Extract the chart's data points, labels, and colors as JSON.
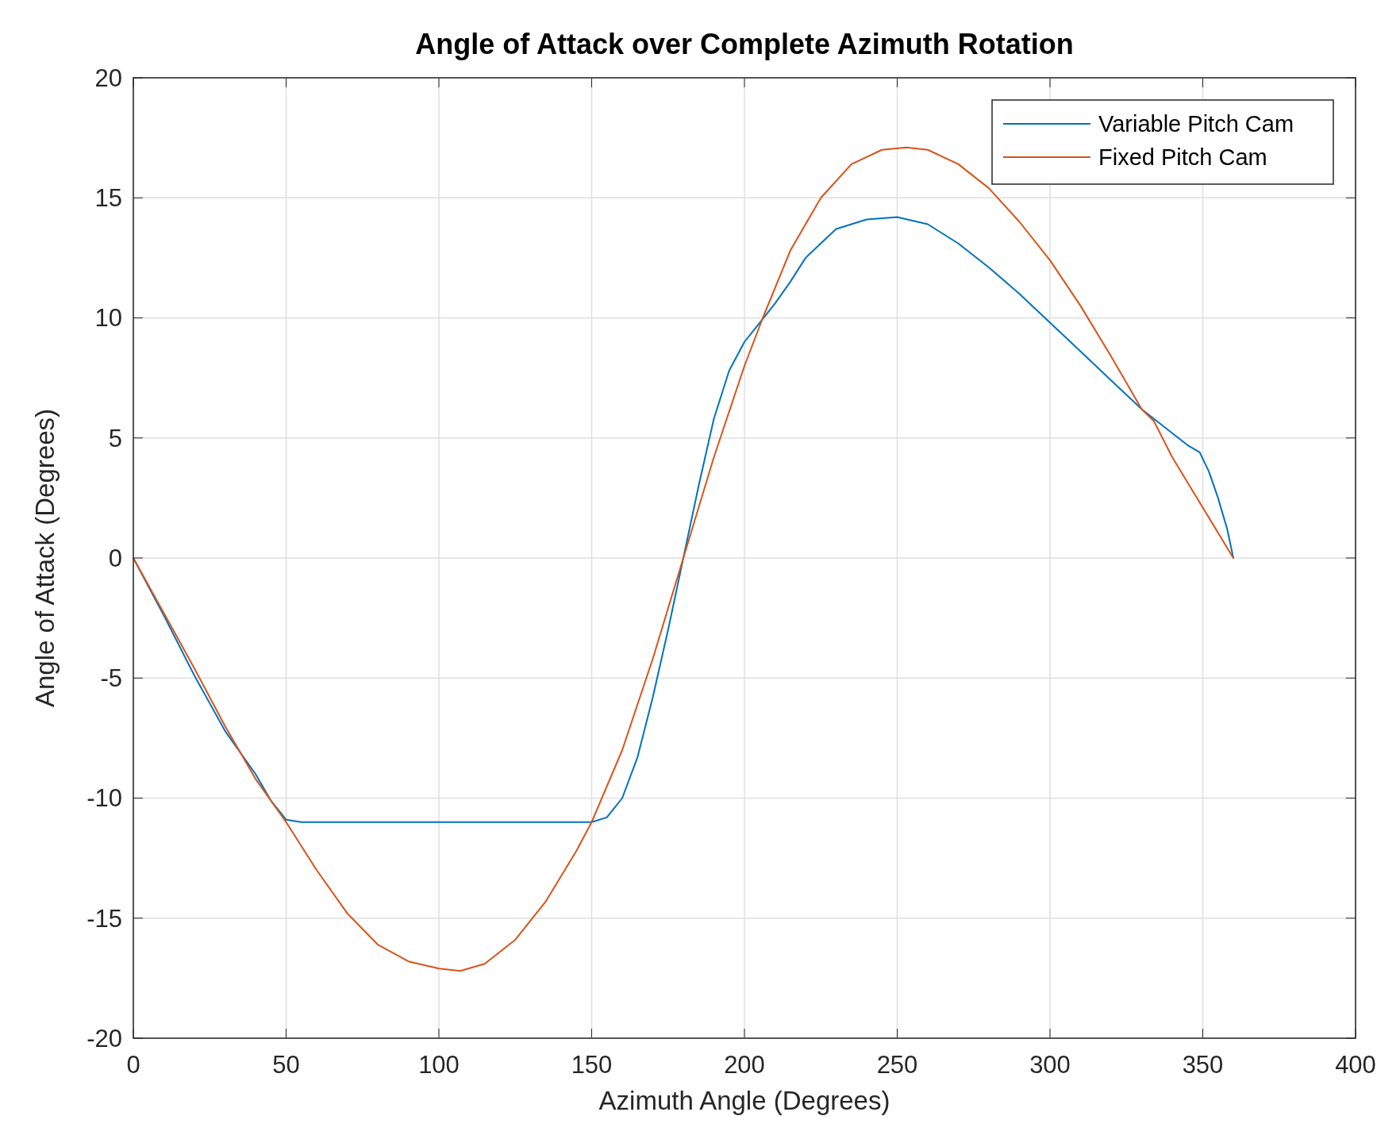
{
  "chart_data": {
    "type": "line",
    "title": "Angle of Attack over Complete Azimuth Rotation",
    "xlabel": "Azimuth Angle (Degrees)",
    "ylabel": "Angle of Attack (Degrees)",
    "xlim": [
      0,
      400
    ],
    "xticks": [
      0,
      50,
      100,
      150,
      200,
      250,
      300,
      350,
      400
    ],
    "ylim": [
      -20,
      20
    ],
    "yticks": [
      -20,
      -15,
      -10,
      -5,
      0,
      5,
      10,
      15,
      20
    ],
    "grid": true,
    "legend": "top right",
    "series": [
      {
        "name": "Variable Pitch Cam",
        "color": "#0072bd",
        "x": [
          0,
          10,
          20,
          30,
          40,
          45,
          50,
          55,
          100,
          145,
          150,
          155,
          160,
          165,
          170,
          175,
          180,
          185,
          190,
          195,
          200,
          205,
          210,
          215,
          220,
          230,
          240,
          250,
          260,
          270,
          280,
          290,
          300,
          310,
          320,
          330,
          340,
          345,
          349,
          352,
          355,
          358,
          360
        ],
        "values": [
          0,
          -2.4,
          -4.9,
          -7.2,
          -9.0,
          -10.1,
          -10.9,
          -11,
          -11,
          -11,
          -11,
          -10.8,
          -10.0,
          -8.3,
          -5.8,
          -3,
          0,
          3,
          5.8,
          7.8,
          9.0,
          9.8,
          10.6,
          11.5,
          12.5,
          13.7,
          14.1,
          14.2,
          13.9,
          13.1,
          12.1,
          11.0,
          9.8,
          8.6,
          7.4,
          6.2,
          5.2,
          4.7,
          4.4,
          3.6,
          2.5,
          1.2,
          0
        ]
      },
      {
        "name": "Fixed Pitch Cam",
        "color": "#d95319",
        "x": [
          0,
          10,
          20,
          30,
          40,
          50,
          60,
          70,
          80,
          90,
          100,
          107,
          115,
          125,
          135,
          145,
          150,
          160,
          170,
          180,
          190,
          200,
          206,
          215,
          225,
          235,
          245,
          253,
          260,
          270,
          280,
          290,
          300,
          310,
          320,
          330,
          334,
          340,
          350,
          360
        ],
        "values": [
          0,
          -2.3,
          -4.6,
          -7,
          -9.2,
          -11,
          -13,
          -14.8,
          -16.1,
          -16.8,
          -17.1,
          -17.2,
          -16.9,
          -15.9,
          -14.3,
          -12.2,
          -11,
          -8,
          -4.2,
          0,
          4.2,
          8,
          10,
          12.8,
          15,
          16.4,
          17,
          17.1,
          17,
          16.4,
          15.4,
          14,
          12.4,
          10.5,
          8.4,
          6.2,
          5.7,
          4.2,
          2.1,
          0
        ]
      }
    ]
  }
}
